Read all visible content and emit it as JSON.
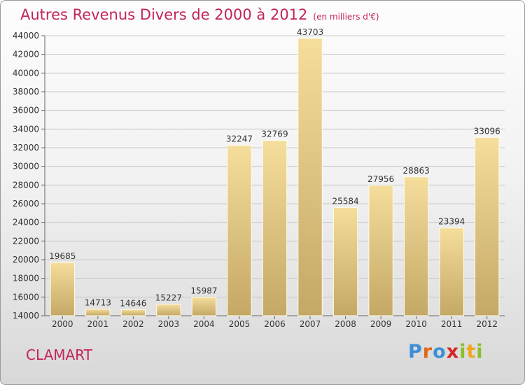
{
  "header": {
    "title": "Autres Revenus Divers de 2000 à 2012",
    "unit": "(en milliers d'€)"
  },
  "location": "CLAMART",
  "logo": {
    "letters": [
      "P",
      "r",
      "o",
      "x",
      "i",
      "t",
      "i"
    ]
  },
  "colors": {
    "title": "#c2255c",
    "bar_light": "#f5dd9c",
    "bar_dark": "#c4a865",
    "gridline": "#c8c8c8"
  },
  "chart_data": {
    "type": "bar",
    "title": "Autres Revenus Divers de 2000 à 2012",
    "subtitle": "(en milliers d'€)",
    "xlabel": "",
    "ylabel": "",
    "categories": [
      "2000",
      "2001",
      "2002",
      "2003",
      "2004",
      "2005",
      "2006",
      "2007",
      "2008",
      "2009",
      "2010",
      "2011",
      "2012"
    ],
    "values": [
      19685,
      14713,
      14646,
      15227,
      15987,
      32247,
      32769,
      43703,
      25584,
      27956,
      28863,
      23394,
      33096
    ],
    "ylim": [
      14000,
      44000
    ],
    "yticks": [
      14000,
      16000,
      18000,
      20000,
      22000,
      24000,
      26000,
      28000,
      30000,
      32000,
      34000,
      36000,
      38000,
      40000,
      42000,
      44000
    ],
    "grid": true,
    "legend": "none"
  }
}
